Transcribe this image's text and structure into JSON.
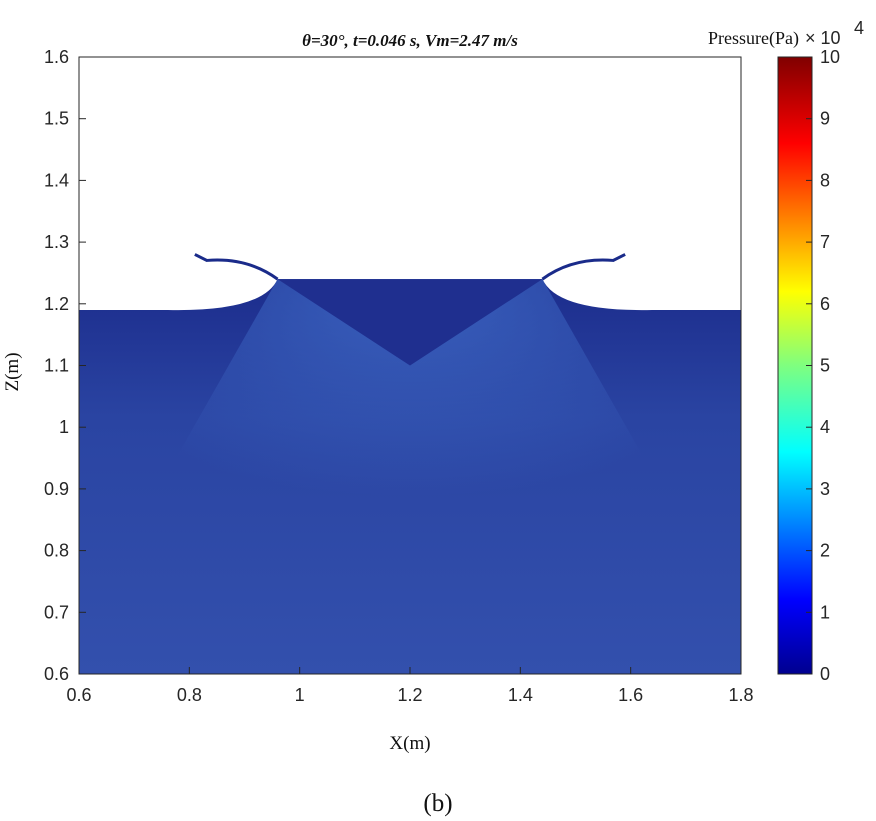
{
  "chart_data": {
    "type": "heatmap",
    "title": "θ=30°,  t=0.046 s,  Vm=2.47 m/s",
    "xlabel": "X(m)",
    "ylabel": "Z(m)",
    "xlim": [
      0.6,
      1.8
    ],
    "ylim": [
      0.6,
      1.6
    ],
    "xticks": [
      "0.6",
      "0.8",
      "1",
      "1.2",
      "1.4",
      "1.6",
      "1.8"
    ],
    "yticks": [
      "0.6",
      "0.7",
      "0.8",
      "0.9",
      "1",
      "1.1",
      "1.2",
      "1.3",
      "1.4",
      "1.5",
      "1.6"
    ],
    "grid": false,
    "colorbar": {
      "label": "Pressure(Pa)",
      "multiplier_base": "× 10",
      "multiplier_exp": "4",
      "range": [
        0,
        10
      ],
      "ticks": [
        "0",
        "1",
        "2",
        "3",
        "4",
        "5",
        "6",
        "7",
        "8",
        "9",
        "10"
      ],
      "colormap": "jet"
    },
    "water_domain": {
      "x_range": [
        0.6,
        1.8
      ],
      "z_bottom": 0.6,
      "free_surface_z": 1.19
    },
    "wedge": {
      "apex": [
        1.2,
        1.1
      ],
      "top_left": [
        0.96,
        1.24
      ],
      "top_right": [
        1.44,
        1.24
      ]
    },
    "jets": [
      {
        "root": [
          0.96,
          1.24
        ],
        "tip": [
          0.81,
          1.28
        ]
      },
      {
        "root": [
          1.44,
          1.24
        ],
        "tip": [
          1.59,
          1.28
        ]
      }
    ],
    "pressure_range_in_fluid": [
      0.0,
      1.6
    ],
    "colors": {
      "low": "#1a2b8a",
      "mid": "#2f4aa6",
      "high_near_wedge": "#3d67c6",
      "wedge": "#1f2f8f"
    }
  },
  "caption": "(b)"
}
